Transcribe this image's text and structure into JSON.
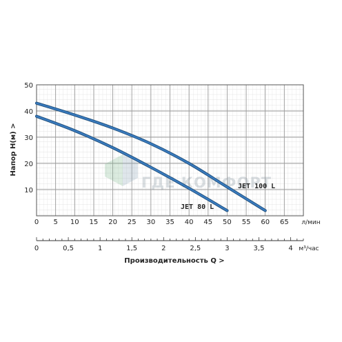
{
  "chart_data": {
    "type": "line",
    "ylabel": "Напор   H(м)  >",
    "ylim": [
      0,
      50
    ],
    "y_ticks": [
      10,
      20,
      30,
      40,
      50
    ],
    "xlabel": "Производительность Q  >",
    "x_flow": {
      "unit": "л/мин",
      "range": [
        0,
        70
      ],
      "ticks": [
        0,
        5,
        10,
        15,
        20,
        25,
        30,
        35,
        40,
        45,
        50,
        55,
        60,
        65
      ]
    },
    "x_m3h": {
      "unit": "м³/час",
      "range": [
        0,
        4.2
      ],
      "ticks": [
        0,
        0.5,
        1,
        1.5,
        2,
        2.5,
        3,
        3.5,
        4
      ],
      "tick_labels": [
        "0",
        "0,5",
        "1",
        "1,5",
        "2",
        "2,5",
        "3",
        "3,5",
        "4"
      ]
    },
    "grid": true,
    "watermark": "ГДЕ КОМФОРТ",
    "series": [
      {
        "name": "JET 100 L",
        "color": "#3a7bbf",
        "x": [
          0,
          10,
          20,
          30,
          40,
          50,
          60
        ],
        "y": [
          43,
          38.5,
          33.5,
          27.5,
          20,
          11,
          2
        ]
      },
      {
        "name": "JET 80 L",
        "color": "#3a7bbf",
        "x": [
          0,
          10,
          20,
          30,
          40,
          50
        ],
        "y": [
          38,
          32.5,
          26,
          18.5,
          10.5,
          2
        ]
      }
    ]
  }
}
